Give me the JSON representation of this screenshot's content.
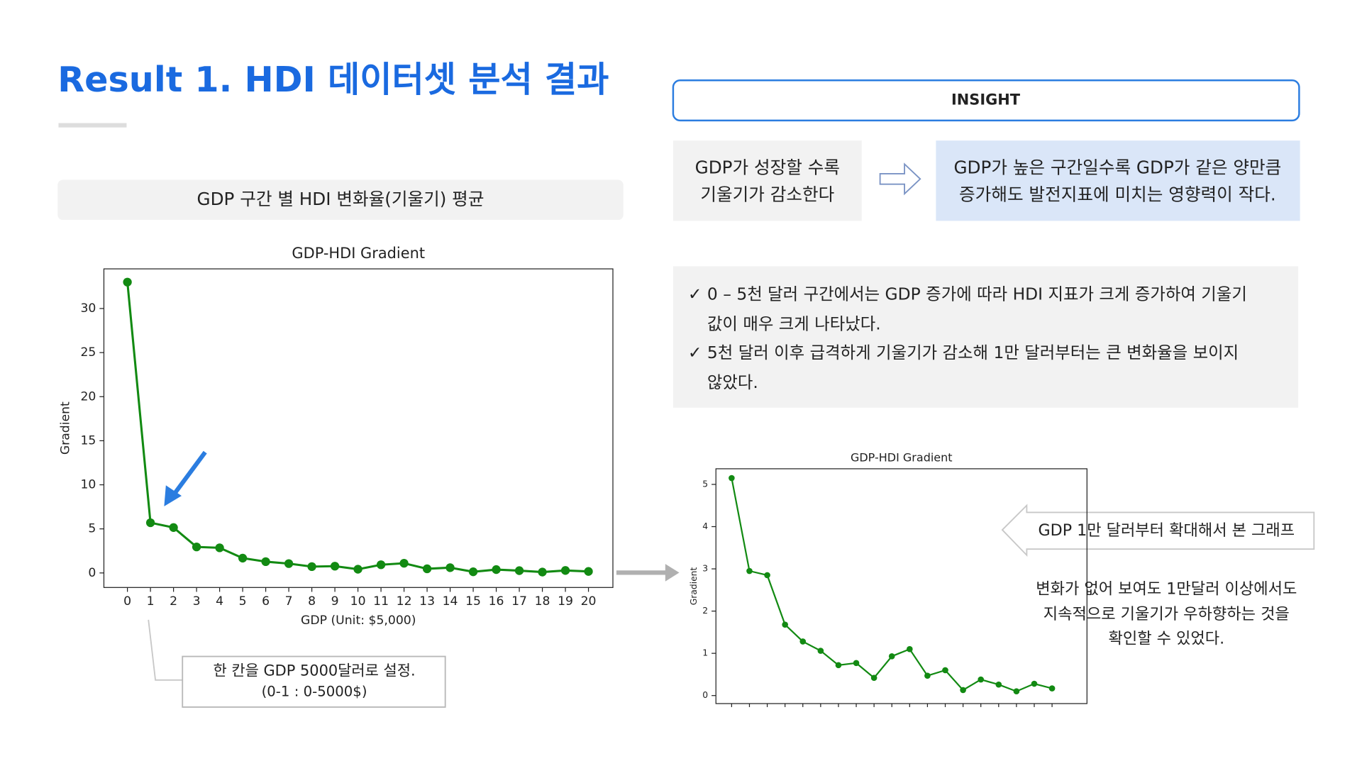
{
  "title": "Result 1. HDI 데이터셋 분석 결과",
  "section_label": "GDP 구간 별 HDI 변화율(기울기) 평균",
  "insight": {
    "header": "INSIGHT",
    "cause_lines": [
      "GDP가 성장할 수록",
      "기울기가 감소한다"
    ],
    "effect_lines": [
      "GDP가 높은 구간일수록 GDP가 같은 양만큼",
      "증가해도 발전지표에 미치는 영향력이 작다."
    ],
    "bullet_mark": "✓",
    "bullets": [
      [
        "0 – 5천 달러 구간에서는 GDP 증가에 따라 HDI 지표가 크게 증가하여 기울기",
        "값이 매우 크게 나타났다."
      ],
      [
        "5천 달러 이후 급격하게 기울기가 감소해 1만 달러부터는 큰 변화율을 보이지",
        "않았다."
      ]
    ]
  },
  "callout_lines": [
    "한 칸을 GDP 5000달러로 설정.",
    "(0-1 : 0-5000$)"
  ],
  "zoom_label": "GDP 1만 달러부터 확대해서 본 그래프",
  "zoom_note_lines": [
    "변화가 없어 보여도 1만달러 이상에서도",
    "지속적으로 기울기가 우하향하는 것을",
    "확인할 수 있었다."
  ],
  "chart_data": [
    {
      "type": "line",
      "title": "GDP-HDI Gradient",
      "x_label": "GDP (Unit: $5,000)",
      "y_label": "Gradient",
      "x": [
        0,
        1,
        2,
        3,
        4,
        5,
        6,
        7,
        8,
        9,
        10,
        11,
        12,
        13,
        14,
        15,
        16,
        17,
        18,
        19,
        20
      ],
      "series": [
        {
          "name": "Gradient",
          "color": "#128a12",
          "values": [
            33.0,
            5.7,
            5.15,
            2.95,
            2.85,
            1.68,
            1.28,
            1.06,
            0.72,
            0.77,
            0.42,
            0.93,
            1.1,
            0.47,
            0.6,
            0.13,
            0.38,
            0.26,
            0.1,
            0.28,
            0.17
          ]
        }
      ],
      "xlim": [
        -1.02,
        21.06
      ],
      "xticks": [
        0,
        1,
        2,
        3,
        4,
        5,
        6,
        7,
        8,
        9,
        10,
        11,
        12,
        13,
        14,
        15,
        16,
        17,
        18,
        19,
        20
      ],
      "ylim": [
        -1.65,
        34.5
      ],
      "yticks": [
        0,
        5,
        10,
        15,
        20,
        25,
        30
      ]
    },
    {
      "type": "line",
      "title": "GDP-HDI Gradient",
      "y_label": "Gradient",
      "categories": [
        null,
        null,
        null,
        null,
        null,
        null,
        null,
        null,
        null,
        null,
        null,
        null,
        null,
        null,
        null,
        null,
        null,
        null,
        null
      ],
      "series": [
        {
          "name": "Gradient",
          "color": "#128a12",
          "values": [
            5.15,
            2.95,
            2.85,
            1.68,
            1.28,
            1.06,
            0.72,
            0.77,
            0.42,
            0.93,
            1.1,
            0.47,
            0.6,
            0.13,
            0.38,
            0.26,
            0.1,
            0.28,
            0.17
          ]
        }
      ],
      "ylim": [
        -0.19,
        5.37
      ],
      "yticks": [
        0,
        1,
        2,
        3,
        4,
        5
      ]
    }
  ]
}
